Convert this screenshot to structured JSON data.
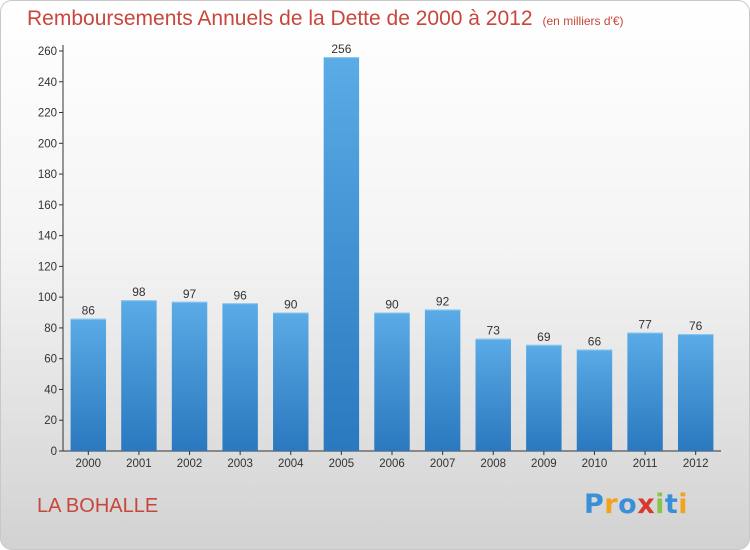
{
  "title": "Remboursements Annuels de la Dette de 2000 à 2012",
  "unit": "(en milliers d'€)",
  "commune": "LA BOHALLE",
  "logo": {
    "letters": [
      "P",
      "r",
      "o",
      "x",
      "i",
      "t",
      "i"
    ],
    "colors": [
      "#3a8fd6",
      "#f2a31b",
      "#3a8fd6",
      "#d9382f",
      "#8bc34a",
      "#3a8fd6",
      "#f2a31b"
    ]
  },
  "colors": {
    "bar_top": "#5aabe6",
    "bar_bottom": "#2a78bf",
    "title": "#c8463b"
  },
  "chart_data": {
    "type": "bar",
    "categories": [
      "2000",
      "2001",
      "2002",
      "2003",
      "2004",
      "2005",
      "2006",
      "2007",
      "2008",
      "2009",
      "2010",
      "2011",
      "2012"
    ],
    "values": [
      86,
      98,
      97,
      96,
      90,
      256,
      90,
      92,
      73,
      69,
      66,
      77,
      76
    ],
    "ylim": [
      0,
      260
    ],
    "yticks": [
      0,
      20,
      40,
      60,
      80,
      100,
      120,
      140,
      160,
      180,
      200,
      220,
      240,
      260
    ],
    "grid": false,
    "data_labels": true
  }
}
